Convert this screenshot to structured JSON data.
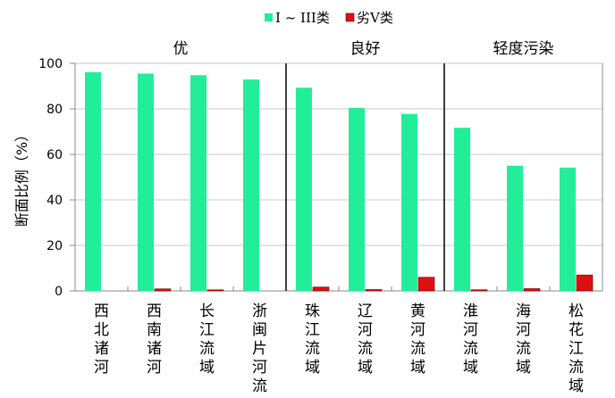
{
  "chart_data": {
    "type": "bar",
    "categories": [
      "西北诸河",
      "西南诸河",
      "长江流域",
      "浙闽片河流",
      "珠江流域",
      "辽河流域",
      "黄河流域",
      "淮河流域",
      "海河流域",
      "松花江流域"
    ],
    "series": [
      {
        "name": "I ~ III类",
        "color": "#22ee99",
        "values": [
          96.1,
          95.5,
          94.8,
          92.9,
          89.3,
          80.4,
          77.8,
          71.7,
          55.0,
          54.2
        ]
      },
      {
        "name": "劣V类",
        "color": "#dd1111",
        "values": [
          0,
          0.9,
          0.4,
          0,
          1.7,
          0.6,
          6.0,
          0.5,
          1.0,
          7.0
        ]
      }
    ],
    "groups": [
      {
        "label": "优",
        "from": 0,
        "to": 3
      },
      {
        "label": "良好",
        "from": 4,
        "to": 6
      },
      {
        "label": "轻度污染",
        "from": 7,
        "to": 9
      }
    ],
    "ylabel": "断面比例（%）",
    "xlabel": "",
    "ylim": [
      0,
      100
    ],
    "yticks": [
      0,
      20,
      40,
      60,
      80,
      100
    ],
    "grid": true,
    "legend": "top-center"
  }
}
